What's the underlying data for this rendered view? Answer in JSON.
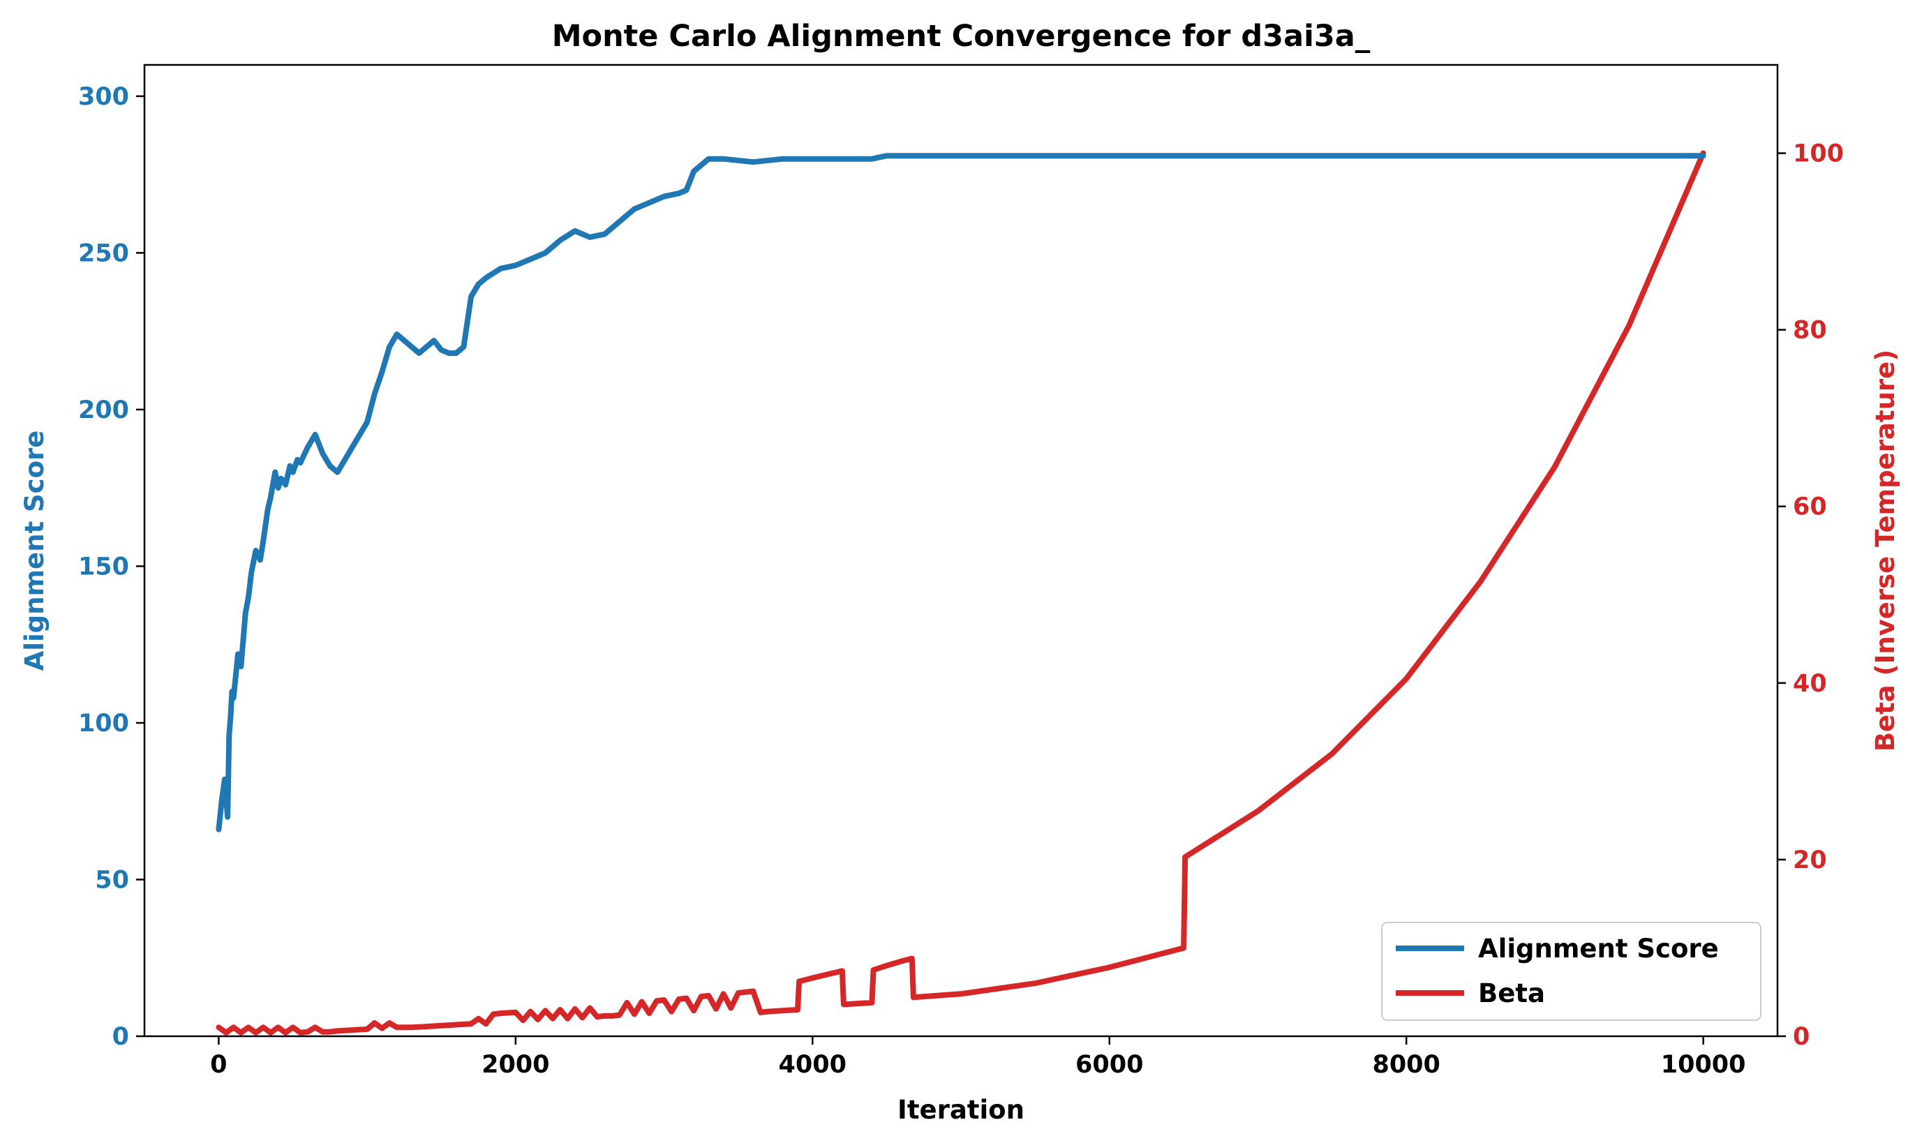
{
  "chart_data": {
    "type": "line",
    "title": "Monte Carlo Alignment Convergence for d3ai3a_",
    "xlabel": "Iteration",
    "ylabel_left": "Alignment Score",
    "ylabel_right": "Beta (Inverse Temperature)",
    "xlim": [
      -500,
      10500
    ],
    "ylim_left": [
      0,
      300
    ],
    "ylim_right": [
      0,
      110
    ],
    "x_ticks": [
      "0",
      "2000",
      "4000",
      "6000",
      "8000",
      "10000"
    ],
    "y_ticks_left": [
      "0",
      "50",
      "100",
      "150",
      "200",
      "250",
      "300"
    ],
    "y_ticks_right": [
      "0",
      "20",
      "40",
      "60",
      "80",
      "100"
    ],
    "grid": false,
    "legend_position": "lower-right",
    "series": [
      {
        "name": "Alignment Score",
        "axis": "left",
        "color": "#1f77b4",
        "x": [
          0,
          20,
          40,
          60,
          70,
          80,
          90,
          100,
          130,
          150,
          180,
          200,
          220,
          250,
          280,
          300,
          330,
          350,
          380,
          400,
          420,
          450,
          480,
          500,
          530,
          550,
          600,
          650,
          700,
          750,
          800,
          850,
          900,
          950,
          1000,
          1050,
          1100,
          1150,
          1200,
          1250,
          1300,
          1350,
          1400,
          1450,
          1500,
          1550,
          1600,
          1650,
          1700,
          1750,
          1800,
          1900,
          2000,
          2100,
          2200,
          2300,
          2400,
          2500,
          2600,
          2700,
          2800,
          2900,
          3000,
          3100,
          3150,
          3200,
          3300,
          3400,
          3600,
          3800,
          4000,
          4200,
          4400,
          4500,
          4600,
          4700,
          5000,
          6000,
          7000,
          8000,
          9000,
          10000
        ],
        "values": [
          66,
          75,
          82,
          70,
          96,
          102,
          110,
          108,
          122,
          118,
          135,
          140,
          148,
          155,
          152,
          158,
          168,
          172,
          180,
          175,
          178,
          176,
          182,
          180,
          184,
          183,
          188,
          192,
          186,
          182,
          180,
          184,
          188,
          192,
          196,
          205,
          212,
          220,
          224,
          222,
          220,
          218,
          220,
          222,
          219,
          218,
          218,
          220,
          236,
          240,
          242,
          245,
          246,
          248,
          250,
          254,
          257,
          255,
          256,
          260,
          264,
          266,
          268,
          269,
          270,
          276,
          280,
          280,
          279,
          280,
          280,
          280,
          280,
          281,
          281,
          281,
          281,
          281,
          281,
          281,
          281,
          281
        ]
      },
      {
        "name": "Beta",
        "axis": "right",
        "color": "#d62728",
        "x": [
          0,
          50,
          100,
          150,
          200,
          250,
          300,
          350,
          400,
          450,
          500,
          550,
          600,
          650,
          700,
          750,
          800,
          900,
          1000,
          1050,
          1100,
          1150,
          1200,
          1250,
          1300,
          1400,
          1500,
          1600,
          1700,
          1750,
          1800,
          1850,
          1900,
          2000,
          2050,
          2100,
          2150,
          2200,
          2250,
          2300,
          2350,
          2400,
          2450,
          2500,
          2550,
          2600,
          2650,
          2700,
          2750,
          2800,
          2850,
          2900,
          2950,
          3000,
          3050,
          3100,
          3150,
          3200,
          3250,
          3300,
          3350,
          3400,
          3450,
          3500,
          3550,
          3600,
          3650,
          3700,
          3800,
          3900,
          3910,
          4000,
          4100,
          4200,
          4210,
          4300,
          4400,
          4410,
          4500,
          4600,
          4670,
          4680,
          5000,
          5500,
          6000,
          6500,
          6510,
          7000,
          7500,
          8000,
          8500,
          9000,
          9500,
          10000
        ],
        "values": [
          1,
          0.4,
          1,
          0.4,
          1,
          0.4,
          1,
          0.4,
          1,
          0.4,
          1,
          0.4,
          0.5,
          1,
          0.5,
          0.5,
          0.6,
          0.7,
          0.8,
          1.5,
          0.9,
          1.5,
          1.0,
          1.0,
          1.0,
          1.1,
          1.2,
          1.3,
          1.4,
          2,
          1.4,
          2.5,
          2.6,
          2.7,
          1.8,
          2.8,
          1.9,
          2.9,
          2.0,
          3.0,
          2.0,
          3.1,
          2.1,
          3.2,
          2.2,
          2.3,
          2.3,
          2.4,
          3.8,
          2.5,
          3.9,
          2.6,
          4.0,
          4.1,
          2.8,
          4.2,
          4.3,
          2.9,
          4.5,
          4.6,
          3.1,
          4.8,
          3.2,
          4.9,
          5.0,
          5.1,
          2.7,
          2.8,
          2.9,
          3.0,
          6.2,
          6.6,
          7.0,
          7.4,
          3.6,
          3.7,
          3.8,
          7.5,
          8.0,
          8.5,
          8.8,
          4.4,
          4.8,
          6.0,
          7.8,
          10.0,
          20.3,
          25.5,
          32.0,
          40.5,
          51.5,
          64.5,
          80.5,
          100
        ]
      }
    ]
  }
}
